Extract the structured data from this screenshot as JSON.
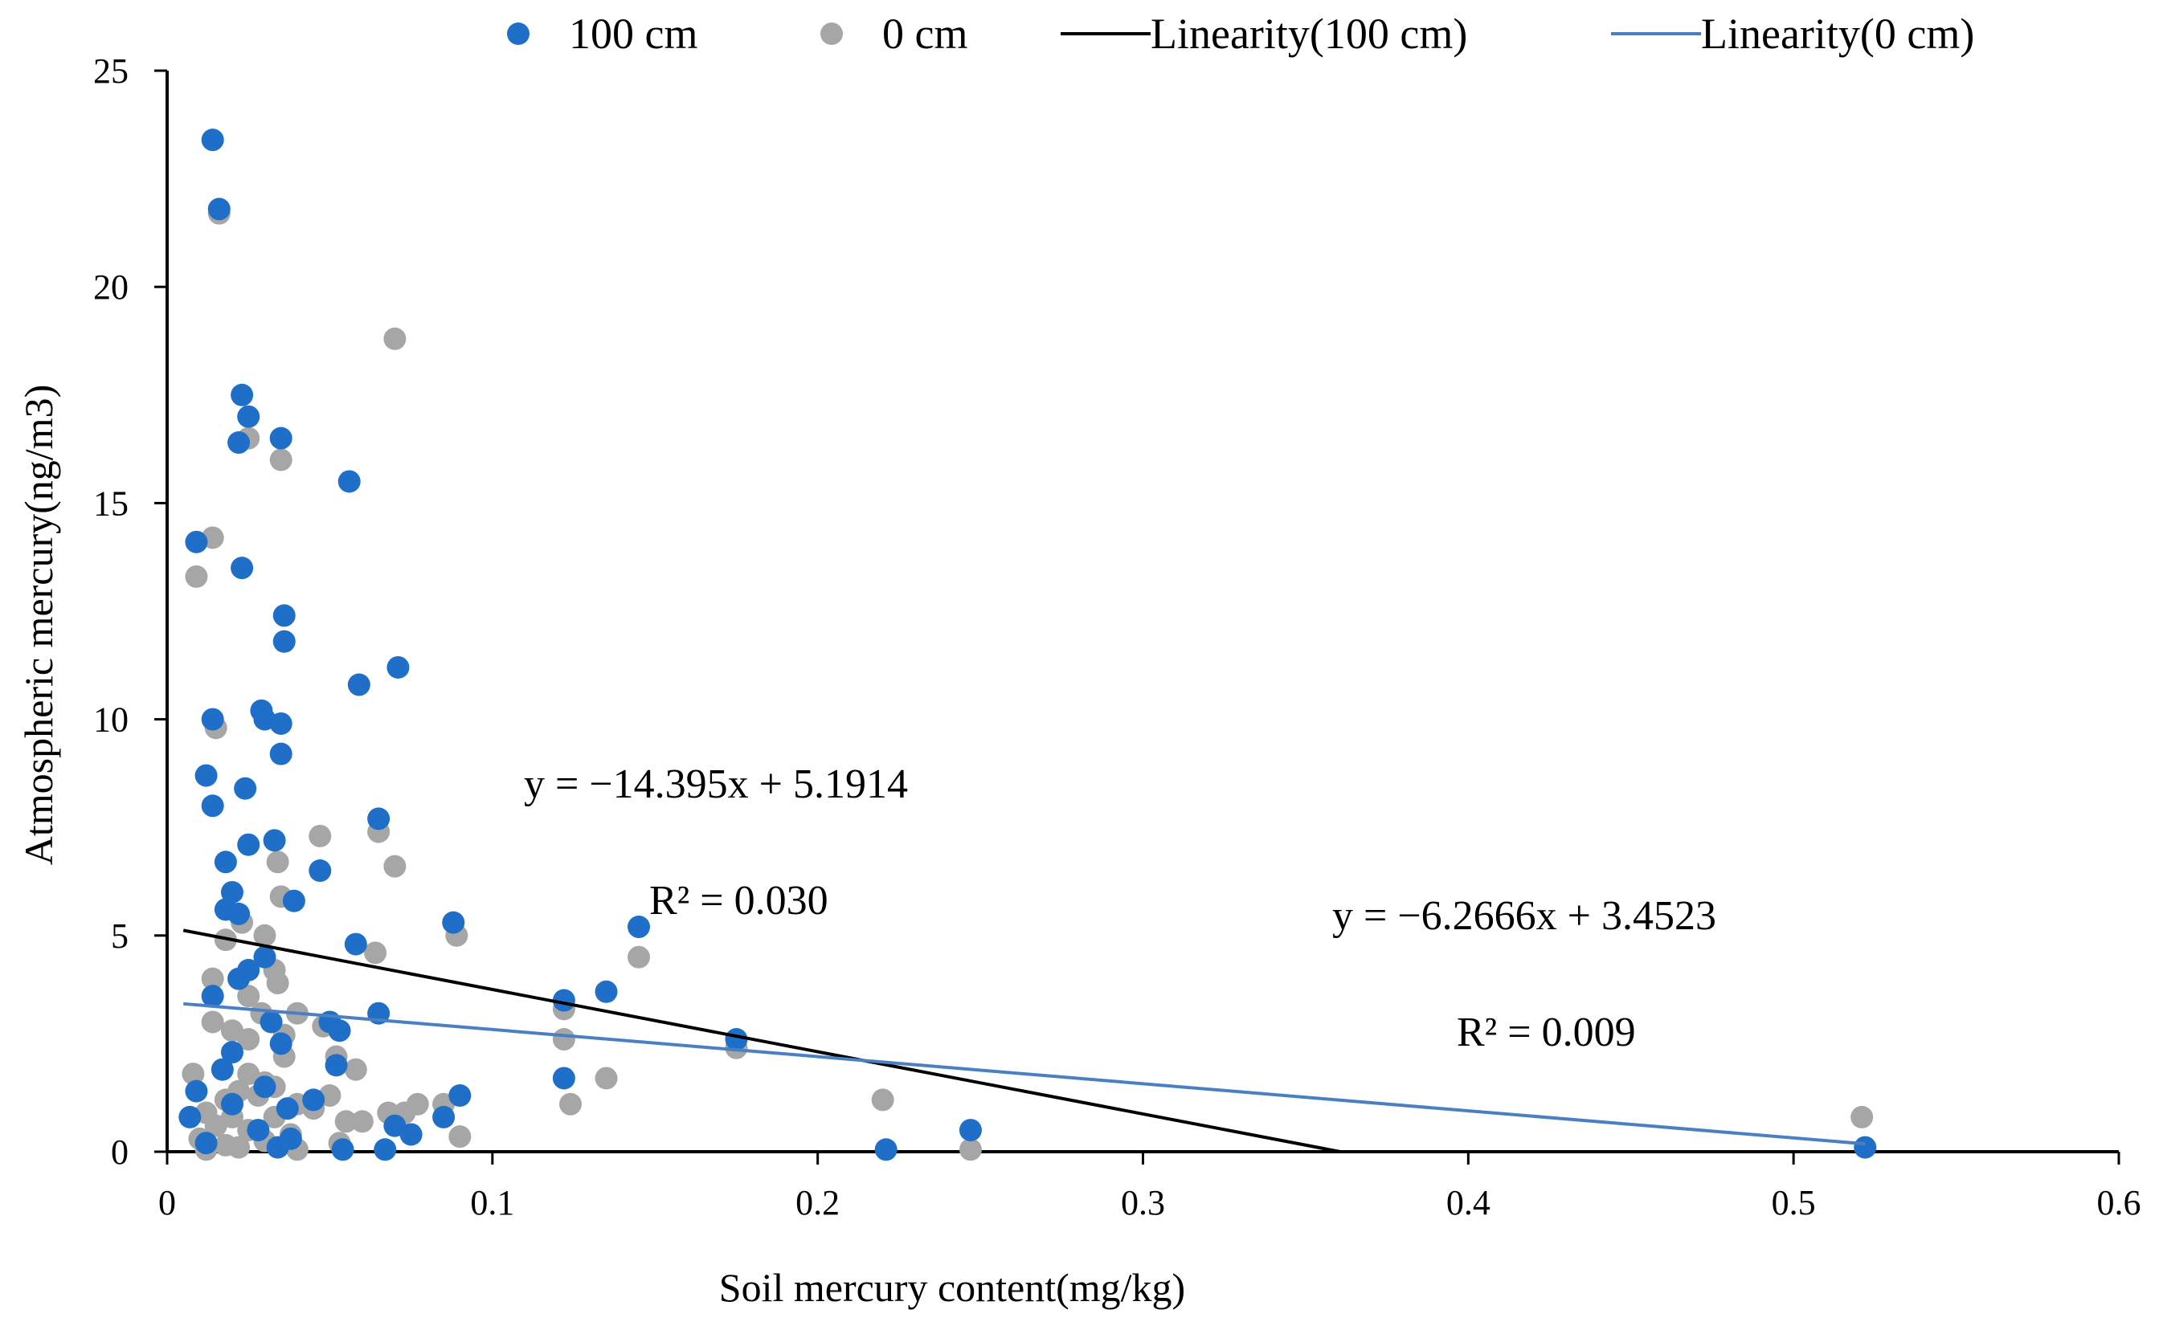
{
  "chart_data": {
    "type": "scatter",
    "title": "",
    "xlabel": "Soil mercury content(mg/kg)",
    "ylabel": "Atmospheric mercury(ng/m3)",
    "xlim": [
      0,
      0.6
    ],
    "ylim": [
      0,
      25
    ],
    "xticks": [
      0,
      0.1,
      0.2,
      0.3,
      0.4,
      0.5,
      0.6
    ],
    "xtick_labels": [
      "0",
      "0.1",
      "0.2",
      "0.3",
      "0.4",
      "0.5",
      "0.6"
    ],
    "yticks": [
      0,
      5,
      10,
      15,
      20,
      25
    ],
    "ytick_labels": [
      "0",
      "5",
      "10",
      "15",
      "20",
      "25"
    ],
    "grid": false,
    "legend_position": "top",
    "colors": {
      "series_100": "#1f6fc8",
      "series_0": "#a6a6a6",
      "trend_100": "#000000",
      "trend_0": "#4a7fc1"
    },
    "series": [
      {
        "name": "100 cm",
        "points": [
          [
            0.014,
            23.4
          ],
          [
            0.016,
            21.8
          ],
          [
            0.023,
            17.5
          ],
          [
            0.025,
            17.0
          ],
          [
            0.035,
            16.5
          ],
          [
            0.022,
            16.4
          ],
          [
            0.056,
            15.5
          ],
          [
            0.009,
            14.1
          ],
          [
            0.023,
            13.5
          ],
          [
            0.036,
            12.4
          ],
          [
            0.036,
            11.8
          ],
          [
            0.071,
            11.2
          ],
          [
            0.059,
            10.8
          ],
          [
            0.029,
            10.2
          ],
          [
            0.014,
            10.0
          ],
          [
            0.03,
            10.0
          ],
          [
            0.035,
            9.9
          ],
          [
            0.035,
            9.2
          ],
          [
            0.012,
            8.7
          ],
          [
            0.024,
            8.4
          ],
          [
            0.014,
            8.0
          ],
          [
            0.065,
            7.7
          ],
          [
            0.025,
            7.1
          ],
          [
            0.033,
            7.2
          ],
          [
            0.018,
            6.7
          ],
          [
            0.047,
            6.5
          ],
          [
            0.02,
            6.0
          ],
          [
            0.018,
            5.6
          ],
          [
            0.039,
            5.8
          ],
          [
            0.022,
            5.5
          ],
          [
            0.088,
            5.3
          ],
          [
            0.145,
            5.2
          ],
          [
            0.058,
            4.8
          ],
          [
            0.03,
            4.5
          ],
          [
            0.025,
            4.2
          ],
          [
            0.022,
            4.0
          ],
          [
            0.014,
            3.6
          ],
          [
            0.135,
            3.7
          ],
          [
            0.122,
            3.5
          ],
          [
            0.065,
            3.2
          ],
          [
            0.032,
            3.0
          ],
          [
            0.05,
            3.0
          ],
          [
            0.053,
            2.8
          ],
          [
            0.175,
            2.6
          ],
          [
            0.035,
            2.5
          ],
          [
            0.02,
            2.3
          ],
          [
            0.052,
            2.0
          ],
          [
            0.017,
            1.9
          ],
          [
            0.122,
            1.7
          ],
          [
            0.03,
            1.5
          ],
          [
            0.009,
            1.4
          ],
          [
            0.09,
            1.3
          ],
          [
            0.045,
            1.2
          ],
          [
            0.02,
            1.1
          ],
          [
            0.037,
            1.0
          ],
          [
            0.085,
            0.8
          ],
          [
            0.007,
            0.8
          ],
          [
            0.07,
            0.6
          ],
          [
            0.028,
            0.5
          ],
          [
            0.247,
            0.5
          ],
          [
            0.075,
            0.4
          ],
          [
            0.038,
            0.3
          ],
          [
            0.012,
            0.2
          ],
          [
            0.034,
            0.1
          ],
          [
            0.054,
            0.05
          ],
          [
            0.067,
            0.05
          ],
          [
            0.221,
            0.05
          ],
          [
            0.522,
            0.1
          ]
        ]
      },
      {
        "name": "0 cm",
        "points": [
          [
            0.016,
            21.7
          ],
          [
            0.07,
            18.8
          ],
          [
            0.025,
            16.5
          ],
          [
            0.035,
            16.0
          ],
          [
            0.014,
            14.2
          ],
          [
            0.009,
            13.3
          ],
          [
            0.036,
            11.8
          ],
          [
            0.015,
            9.8
          ],
          [
            0.065,
            7.4
          ],
          [
            0.047,
            7.3
          ],
          [
            0.034,
            6.7
          ],
          [
            0.07,
            6.6
          ],
          [
            0.035,
            5.9
          ],
          [
            0.023,
            5.3
          ],
          [
            0.089,
            5.0
          ],
          [
            0.03,
            5.0
          ],
          [
            0.018,
            4.9
          ],
          [
            0.145,
            4.5
          ],
          [
            0.064,
            4.6
          ],
          [
            0.033,
            4.2
          ],
          [
            0.014,
            4.0
          ],
          [
            0.034,
            3.9
          ],
          [
            0.025,
            3.6
          ],
          [
            0.122,
            3.3
          ],
          [
            0.04,
            3.2
          ],
          [
            0.029,
            3.2
          ],
          [
            0.014,
            3.0
          ],
          [
            0.048,
            2.9
          ],
          [
            0.02,
            2.8
          ],
          [
            0.036,
            2.7
          ],
          [
            0.122,
            2.6
          ],
          [
            0.025,
            2.6
          ],
          [
            0.175,
            2.4
          ],
          [
            0.036,
            2.2
          ],
          [
            0.052,
            2.2
          ],
          [
            0.058,
            1.9
          ],
          [
            0.025,
            1.8
          ],
          [
            0.008,
            1.8
          ],
          [
            0.03,
            1.6
          ],
          [
            0.135,
            1.7
          ],
          [
            0.033,
            1.5
          ],
          [
            0.022,
            1.4
          ],
          [
            0.028,
            1.3
          ],
          [
            0.05,
            1.3
          ],
          [
            0.22,
            1.2
          ],
          [
            0.018,
            1.2
          ],
          [
            0.04,
            1.1
          ],
          [
            0.077,
            1.1
          ],
          [
            0.124,
            1.1
          ],
          [
            0.085,
            1.1
          ],
          [
            0.045,
            1.0
          ],
          [
            0.068,
            0.9
          ],
          [
            0.073,
            0.9
          ],
          [
            0.012,
            0.9
          ],
          [
            0.02,
            0.8
          ],
          [
            0.033,
            0.8
          ],
          [
            0.055,
            0.7
          ],
          [
            0.06,
            0.7
          ],
          [
            0.521,
            0.8
          ],
          [
            0.015,
            0.6
          ],
          [
            0.025,
            0.5
          ],
          [
            0.038,
            0.4
          ],
          [
            0.09,
            0.35
          ],
          [
            0.01,
            0.3
          ],
          [
            0.03,
            0.25
          ],
          [
            0.053,
            0.2
          ],
          [
            0.018,
            0.15
          ],
          [
            0.022,
            0.1
          ],
          [
            0.04,
            0.05
          ],
          [
            0.247,
            0.05
          ],
          [
            0.012,
            0.05
          ]
        ]
      }
    ],
    "trendlines": [
      {
        "name": "Linearity(100 cm)",
        "slope": -14.395,
        "intercept": 5.1914,
        "x_range": [
          0.005,
          0.3606
        ]
      },
      {
        "name": "Linearity(0 cm)",
        "slope": -6.2666,
        "intercept": 3.4523,
        "x_range": [
          0.005,
          0.522
        ]
      }
    ],
    "annotations": {
      "eq_100": "y = −14.395x + 5.1914",
      "r2_100": "R² = 0.030",
      "eq_0": "y = −6.2666x + 3.4523",
      "r2_0": "R² = 0.009"
    }
  }
}
